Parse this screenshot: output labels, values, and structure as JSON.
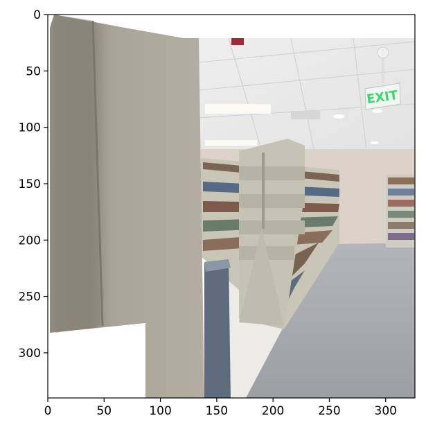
{
  "plot": {
    "xlim": [
      0,
      326
    ],
    "ylim": [
      340,
      0
    ],
    "x_ticks": [
      {
        "value": 0,
        "label": "0"
      },
      {
        "value": 50,
        "label": "50"
      },
      {
        "value": 100,
        "label": "100"
      },
      {
        "value": 150,
        "label": "150"
      },
      {
        "value": 200,
        "label": "200"
      },
      {
        "value": 250,
        "label": "250"
      },
      {
        "value": 300,
        "label": "300"
      }
    ],
    "y_ticks": [
      {
        "value": 0,
        "label": "0"
      },
      {
        "value": 50,
        "label": "50"
      },
      {
        "value": 100,
        "label": "100"
      },
      {
        "value": 150,
        "label": "150"
      },
      {
        "value": 200,
        "label": "200"
      },
      {
        "value": 250,
        "label": "250"
      },
      {
        "value": 300,
        "label": "300"
      }
    ]
  },
  "scene": {
    "exit_sign_text": "EXIT",
    "colors": {
      "concrete": "#a8a096",
      "ceiling": "#eeeeec",
      "wall": "#ddd2ca",
      "floor": "#a8aab0",
      "shelf_metal": "#c4c3b4",
      "kiosk": "#5d6b7c",
      "exit_green": "#3cd66e"
    }
  }
}
